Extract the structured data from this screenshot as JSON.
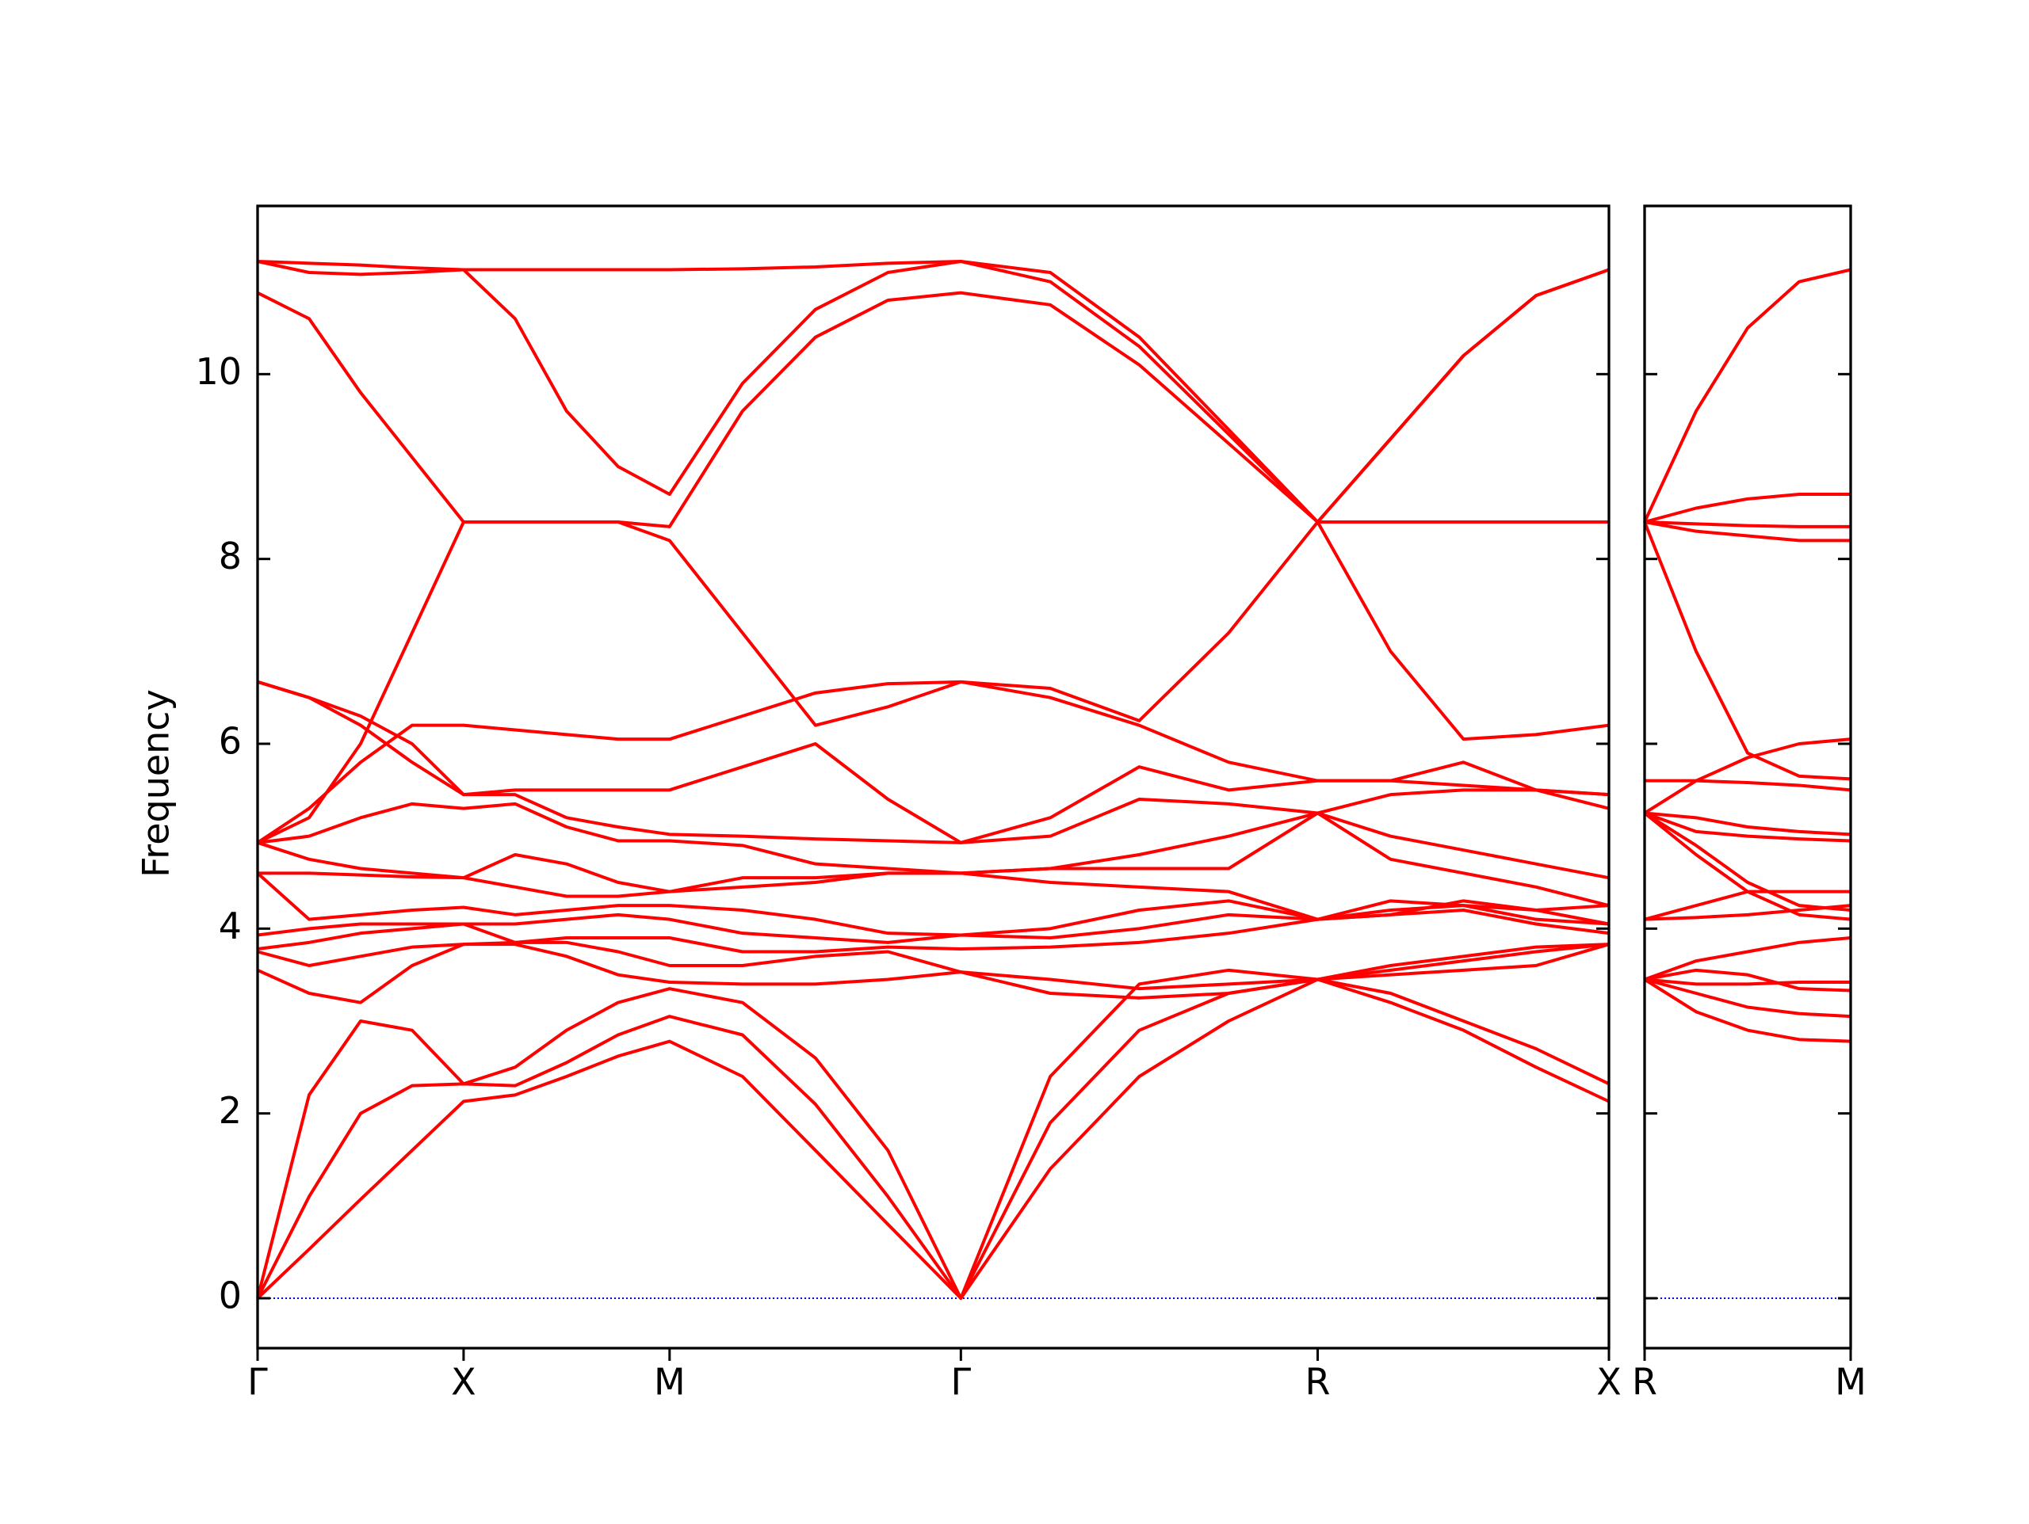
{
  "chart_data": [
    {
      "type": "line",
      "y_label": "Frequency",
      "color": "#ff0000",
      "zero_line_color": "#0000ff",
      "x": [
        0,
        0.125,
        0.25,
        0.375,
        0.5,
        0.625,
        0.75,
        0.875,
        1.0,
        1.177,
        1.354,
        1.53,
        1.707,
        1.924,
        2.14,
        2.357,
        2.573,
        2.75,
        2.927,
        3.103,
        3.28
      ],
      "xlim": [
        0,
        3.28
      ],
      "ylim": [
        -0.54,
        11.82
      ],
      "yticks": [
        0,
        2,
        4,
        6,
        8,
        10
      ],
      "xticks": [
        {
          "value": 0,
          "label": "Γ"
        },
        {
          "value": 0.5,
          "label": "X"
        },
        {
          "value": 1.0,
          "label": "M"
        },
        {
          "value": 1.707,
          "label": "Γ"
        },
        {
          "value": 2.573,
          "label": "R"
        },
        {
          "value": 3.28,
          "label": "X"
        }
      ],
      "series": [
        {
          "values": [
            0,
            0.53,
            1.07,
            1.6,
            2.13,
            2.2,
            2.4,
            2.62,
            2.78,
            2.4,
            1.6,
            0.8,
            0,
            1.4,
            2.4,
            3.0,
            3.45,
            3.2,
            2.9,
            2.5,
            2.13
          ]
        },
        {
          "values": [
            0,
            1.1,
            2.0,
            2.3,
            2.32,
            2.3,
            2.55,
            2.85,
            3.05,
            2.85,
            2.1,
            1.1,
            0,
            1.9,
            2.9,
            3.3,
            3.45,
            3.3,
            3.0,
            2.7,
            2.32
          ]
        },
        {
          "values": [
            0,
            2.2,
            3.0,
            2.9,
            2.32,
            2.5,
            2.9,
            3.2,
            3.35,
            3.2,
            2.6,
            1.6,
            0,
            2.4,
            3.4,
            3.55,
            3.45,
            3.5,
            3.55,
            3.6,
            3.83
          ]
        },
        {
          "values": [
            3.55,
            3.3,
            3.2,
            3.6,
            3.83,
            3.83,
            3.7,
            3.5,
            3.42,
            3.4,
            3.4,
            3.45,
            3.53,
            3.3,
            3.25,
            3.3,
            3.45,
            3.55,
            3.65,
            3.75,
            3.83
          ]
        },
        {
          "values": [
            3.75,
            3.6,
            3.7,
            3.8,
            3.83,
            3.85,
            3.85,
            3.75,
            3.6,
            3.6,
            3.7,
            3.75,
            3.53,
            3.45,
            3.35,
            3.4,
            3.45,
            3.6,
            3.7,
            3.8,
            3.83
          ]
        },
        {
          "values": [
            3.78,
            3.85,
            3.95,
            4.0,
            4.05,
            3.85,
            3.9,
            3.9,
            3.9,
            3.75,
            3.75,
            3.8,
            3.78,
            3.8,
            3.85,
            3.95,
            4.1,
            4.15,
            4.2,
            4.05,
            3.95
          ]
        },
        {
          "values": [
            3.93,
            4.0,
            4.05,
            4.05,
            4.05,
            4.05,
            4.1,
            4.15,
            4.1,
            3.95,
            3.9,
            3.85,
            3.93,
            3.9,
            4.0,
            4.15,
            4.1,
            4.2,
            4.25,
            4.1,
            4.05
          ]
        },
        {
          "values": [
            4.6,
            4.1,
            4.15,
            4.2,
            4.23,
            4.15,
            4.2,
            4.25,
            4.25,
            4.2,
            4.1,
            3.95,
            3.93,
            4.0,
            4.2,
            4.3,
            4.1,
            4.15,
            4.3,
            4.2,
            4.05
          ]
        },
        {
          "values": [
            4.6,
            4.6,
            4.58,
            4.56,
            4.55,
            4.45,
            4.35,
            4.35,
            4.4,
            4.45,
            4.5,
            4.6,
            4.6,
            4.5,
            4.45,
            4.4,
            4.1,
            4.3,
            4.25,
            4.2,
            4.25
          ]
        },
        {
          "values": [
            4.93,
            4.75,
            4.65,
            4.6,
            4.55,
            4.8,
            4.7,
            4.5,
            4.4,
            4.55,
            4.55,
            4.6,
            4.6,
            4.65,
            4.65,
            4.65,
            5.25,
            4.75,
            4.6,
            4.45,
            4.25
          ]
        },
        {
          "values": [
            4.93,
            5.0,
            5.2,
            5.35,
            5.3,
            5.35,
            5.1,
            4.95,
            4.95,
            4.9,
            4.7,
            4.65,
            4.6,
            4.65,
            4.8,
            5.0,
            5.25,
            5.0,
            4.85,
            4.7,
            4.55
          ]
        },
        {
          "values": [
            6.67,
            6.5,
            6.2,
            5.8,
            5.45,
            5.45,
            5.2,
            5.1,
            5.02,
            5.0,
            4.97,
            4.95,
            4.93,
            5.0,
            5.4,
            5.35,
            5.25,
            5.45,
            5.5,
            5.5,
            5.3
          ]
        },
        {
          "values": [
            6.67,
            6.5,
            6.3,
            6.0,
            5.45,
            5.5,
            5.5,
            5.5,
            5.5,
            5.75,
            6.0,
            5.4,
            4.93,
            5.2,
            5.75,
            5.5,
            5.6,
            5.6,
            5.8,
            5.5,
            5.45
          ]
        },
        {
          "values": [
            4.93,
            5.3,
            5.8,
            6.2,
            6.2,
            6.15,
            6.1,
            6.05,
            6.05,
            6.3,
            6.55,
            6.65,
            6.67,
            6.5,
            6.2,
            5.8,
            5.6,
            5.6,
            5.55,
            5.5,
            5.45
          ]
        },
        {
          "values": [
            4.93,
            5.2,
            6.0,
            7.2,
            8.4,
            8.4,
            8.4,
            8.4,
            8.2,
            7.2,
            6.2,
            6.4,
            6.67,
            6.6,
            6.25,
            7.2,
            8.4,
            7.0,
            6.05,
            6.1,
            6.2
          ]
        },
        {
          "values": [
            10.88,
            10.6,
            9.8,
            9.1,
            8.4,
            8.4,
            8.4,
            8.4,
            8.35,
            9.6,
            10.4,
            10.8,
            10.88,
            10.75,
            10.1,
            9.25,
            8.4,
            8.4,
            8.4,
            8.4,
            8.4
          ]
        },
        {
          "values": [
            11.22,
            11.1,
            11.08,
            11.1,
            11.13,
            10.6,
            9.6,
            9.0,
            8.7,
            9.9,
            10.7,
            11.1,
            11.22,
            11.0,
            10.3,
            9.35,
            8.4,
            9.3,
            10.2,
            10.85,
            11.13
          ]
        },
        {
          "values": [
            11.22,
            11.2,
            11.18,
            11.15,
            11.13,
            11.13,
            11.13,
            11.13,
            11.13,
            11.14,
            11.16,
            11.2,
            11.22,
            11.1,
            10.4,
            9.4,
            8.4,
            9.3,
            10.2,
            10.85,
            11.13
          ]
        }
      ]
    },
    {
      "type": "line",
      "color": "#ff0000",
      "zero_line_color": "#0000ff",
      "x": [
        0,
        0.125,
        0.25,
        0.375,
        0.5
      ],
      "xlim": [
        0,
        0.5
      ],
      "ylim": [
        -0.54,
        11.82
      ],
      "xticks": [
        {
          "value": 0,
          "label": "R"
        },
        {
          "value": 0.5,
          "label": "M"
        }
      ],
      "series": [
        {
          "values": [
            3.45,
            3.1,
            2.9,
            2.8,
            2.78
          ]
        },
        {
          "values": [
            3.45,
            3.3,
            3.15,
            3.08,
            3.05
          ]
        },
        {
          "values": [
            3.45,
            3.55,
            3.5,
            3.35,
            3.33
          ]
        },
        {
          "values": [
            3.45,
            3.4,
            3.4,
            3.42,
            3.42
          ]
        },
        {
          "values": [
            3.45,
            3.65,
            3.75,
            3.85,
            3.9
          ]
        },
        {
          "values": [
            4.1,
            4.12,
            4.15,
            4.2,
            4.25
          ]
        },
        {
          "values": [
            4.1,
            4.25,
            4.4,
            4.4,
            4.4
          ]
        },
        {
          "values": [
            5.25,
            4.8,
            4.4,
            4.15,
            4.1
          ]
        },
        {
          "values": [
            5.25,
            4.9,
            4.5,
            4.25,
            4.2
          ]
        },
        {
          "values": [
            5.25,
            5.05,
            5.0,
            4.97,
            4.95
          ]
        },
        {
          "values": [
            5.25,
            5.2,
            5.1,
            5.05,
            5.02
          ]
        },
        {
          "values": [
            5.25,
            5.6,
            5.85,
            6.0,
            6.05
          ]
        },
        {
          "values": [
            5.6,
            5.6,
            5.58,
            5.55,
            5.5
          ]
        },
        {
          "values": [
            8.4,
            7.0,
            5.9,
            5.65,
            5.62
          ]
        },
        {
          "values": [
            8.4,
            8.3,
            8.25,
            8.2,
            8.2
          ]
        },
        {
          "values": [
            8.4,
            8.38,
            8.36,
            8.35,
            8.35
          ]
        },
        {
          "values": [
            8.4,
            8.55,
            8.65,
            8.7,
            8.7
          ]
        },
        {
          "values": [
            8.4,
            9.6,
            10.5,
            11.0,
            11.13
          ]
        }
      ]
    }
  ]
}
